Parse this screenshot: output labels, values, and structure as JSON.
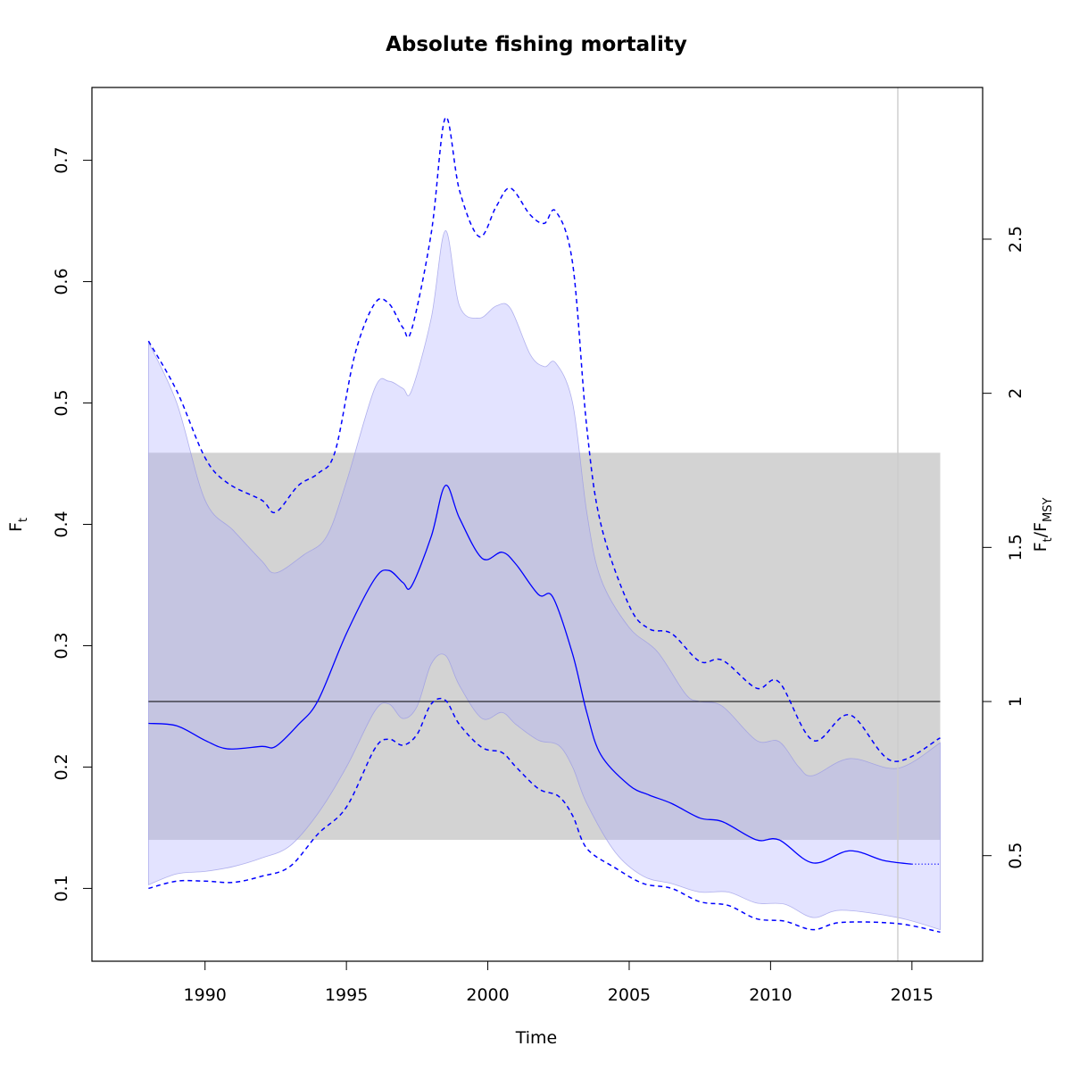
{
  "chart_data": {
    "type": "line",
    "title": "Absolute fishing mortality",
    "xlabel": "Time",
    "ylabel": "F",
    "ylabel_sub": "t",
    "y2label_num": "F",
    "y2label_num_sub": "t",
    "y2label_sep": "/",
    "y2label_den": "F",
    "y2label_den_sub": "MSY",
    "xlim": [
      1986,
      2017.5
    ],
    "ylim": [
      0.04,
      0.76
    ],
    "x_ticks": [
      1990,
      1995,
      2000,
      2005,
      2010,
      2015
    ],
    "x_tick_labels": [
      "1990",
      "1995",
      "2000",
      "2005",
      "2010",
      "2015"
    ],
    "y_ticks": [
      0.1,
      0.2,
      0.3,
      0.4,
      0.5,
      0.6,
      0.7
    ],
    "y_tick_labels": [
      "0.1",
      "0.2",
      "0.3",
      "0.4",
      "0.5",
      "0.6",
      "0.7"
    ],
    "y2_ticks": [
      0.5,
      1,
      1.5,
      2,
      2.5
    ],
    "y2_tick_labels": [
      "0.5",
      "1",
      "1.5",
      "2",
      "2.5"
    ],
    "fmsy": 0.254,
    "fmsy_ci": [
      0.14,
      0.459
    ],
    "fmsy_ci_x": [
      1988,
      2016
    ],
    "vline_x": 2014.5,
    "colors": {
      "main": "#0000ff",
      "ci_fill": "rgba(170,170,255,0.33)",
      "ci_edge": "rgba(150,150,230,0.7)",
      "fmsy_band": "#d3d3d3",
      "fmsy_line": "#000000",
      "vline": "#cccccc"
    },
    "series": [
      {
        "name": "F estimate",
        "style": "solid",
        "x": [
          1988,
          1989,
          1990,
          1990.8,
          1992,
          1992.5,
          1993.3,
          1994,
          1995,
          1996,
          1996.5,
          1997,
          1997.3,
          1998,
          1998.5,
          1999,
          1999.8,
          2000.5,
          2001,
          2001.8,
          2002.3,
          2003,
          2003.5,
          2004,
          2005,
          2005.7,
          2006.5,
          2007.5,
          2008.3,
          2009.5,
          2010.3,
          2011.5,
          2012.8,
          2014,
          2015
        ],
        "y": [
          0.236,
          0.234,
          0.222,
          0.215,
          0.217,
          0.217,
          0.235,
          0.255,
          0.31,
          0.355,
          0.362,
          0.352,
          0.349,
          0.39,
          0.432,
          0.405,
          0.372,
          0.377,
          0.367,
          0.342,
          0.34,
          0.293,
          0.245,
          0.21,
          0.185,
          0.177,
          0.17,
          0.158,
          0.155,
          0.14,
          0.14,
          0.121,
          0.131,
          0.123,
          0.12
        ]
      },
      {
        "name": "F prediction",
        "style": "dotted",
        "x": [
          2015,
          2016
        ],
        "y": [
          0.12,
          0.12
        ]
      },
      {
        "name": "Upper CI",
        "style": "dashed",
        "x": [
          1988,
          1989,
          1990,
          1990.8,
          1992,
          1992.5,
          1993.3,
          1994,
          1994.6,
          1995.3,
          1996,
          1996.5,
          1997,
          1997.3,
          1998,
          1998.5,
          1999,
          1999.7,
          2000.3,
          2000.8,
          2001.5,
          2002,
          2002.4,
          2003,
          2003.5,
          2004,
          2005,
          2005.7,
          2006.5,
          2007.5,
          2008.3,
          2009.5,
          2010.3,
          2011.5,
          2012.8,
          2014.3,
          2016
        ],
        "y": [
          0.551,
          0.51,
          0.455,
          0.434,
          0.42,
          0.41,
          0.432,
          0.442,
          0.46,
          0.54,
          0.582,
          0.582,
          0.562,
          0.56,
          0.64,
          0.735,
          0.675,
          0.637,
          0.662,
          0.677,
          0.655,
          0.648,
          0.658,
          0.615,
          0.48,
          0.4,
          0.333,
          0.314,
          0.31,
          0.287,
          0.288,
          0.265,
          0.27,
          0.222,
          0.243,
          0.205,
          0.224
        ]
      },
      {
        "name": "Lower CI",
        "style": "dashed",
        "x": [
          1988,
          1989,
          1990,
          1991,
          1992,
          1993,
          1994,
          1995,
          1996,
          1996.5,
          1997,
          1997.5,
          1998,
          1998.5,
          1999,
          1999.8,
          2000.5,
          2001,
          2001.8,
          2002.5,
          2003,
          2003.5,
          2004.5,
          2005.5,
          2006.5,
          2007.5,
          2008.5,
          2009.5,
          2010.5,
          2011.5,
          2012.5,
          2014.5,
          2016
        ],
        "y": [
          0.1,
          0.106,
          0.106,
          0.105,
          0.11,
          0.118,
          0.145,
          0.167,
          0.215,
          0.223,
          0.218,
          0.227,
          0.252,
          0.255,
          0.235,
          0.216,
          0.212,
          0.2,
          0.182,
          0.176,
          0.16,
          0.133,
          0.117,
          0.104,
          0.1,
          0.089,
          0.086,
          0.075,
          0.073,
          0.066,
          0.072,
          0.071,
          0.064
        ]
      },
      {
        "name": "CI band upper",
        "style": "band-upper",
        "x": [
          1988,
          1989,
          1990,
          1991,
          1992,
          1992.5,
          1993.5,
          1994.3,
          1995,
          1996,
          1996.5,
          1997,
          1997.3,
          1998,
          1998.5,
          1999,
          1999.7,
          2000.3,
          2000.8,
          2001.5,
          2002,
          2002.4,
          2003,
          2003.5,
          2004,
          2005,
          2006,
          2007,
          2007.5,
          2008.3,
          2009.5,
          2010.3,
          2011,
          2011.5,
          2012.8,
          2014.5,
          2016
        ],
        "y": [
          0.55,
          0.5,
          0.42,
          0.395,
          0.37,
          0.36,
          0.375,
          0.39,
          0.435,
          0.512,
          0.518,
          0.512,
          0.51,
          0.57,
          0.642,
          0.58,
          0.57,
          0.58,
          0.578,
          0.54,
          0.53,
          0.533,
          0.5,
          0.41,
          0.355,
          0.315,
          0.295,
          0.26,
          0.254,
          0.25,
          0.222,
          0.221,
          0.2,
          0.193,
          0.207,
          0.199,
          0.22
        ]
      },
      {
        "name": "CI band lower",
        "style": "band-lower",
        "x": [
          1988,
          1989,
          1990,
          1991,
          1992,
          1993,
          1994,
          1995,
          1996,
          1996.5,
          1997,
          1997.5,
          1998,
          1998.5,
          1999,
          1999.8,
          2000.5,
          2001,
          2001.8,
          2002.5,
          2003,
          2003.5,
          2004.5,
          2005.5,
          2006.5,
          2007.5,
          2008.5,
          2009.5,
          2010.5,
          2011.5,
          2012.5,
          2014.5,
          2016
        ],
        "y": [
          0.103,
          0.112,
          0.114,
          0.118,
          0.125,
          0.135,
          0.162,
          0.2,
          0.246,
          0.252,
          0.24,
          0.25,
          0.285,
          0.292,
          0.267,
          0.24,
          0.245,
          0.235,
          0.222,
          0.218,
          0.2,
          0.17,
          0.13,
          0.11,
          0.104,
          0.097,
          0.097,
          0.088,
          0.087,
          0.076,
          0.082,
          0.076,
          0.066
        ]
      }
    ]
  }
}
